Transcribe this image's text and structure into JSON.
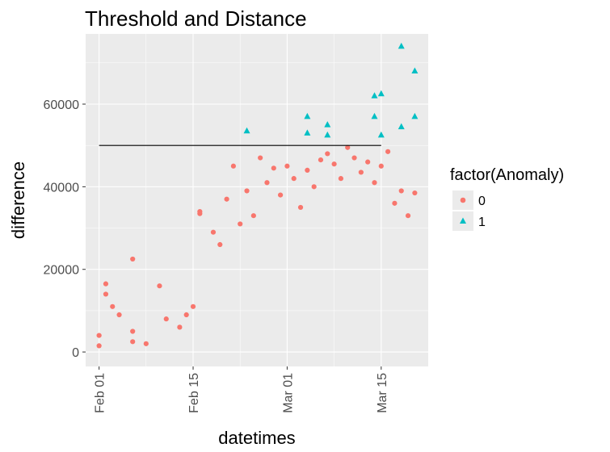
{
  "chart_data": {
    "type": "scatter",
    "title": "Threshold and Distance",
    "xlabel": "datetimes",
    "ylabel": "difference",
    "x_ticks": [
      {
        "label": "Feb 01",
        "date": "2017-02-01"
      },
      {
        "label": "Feb 15",
        "date": "2017-02-15"
      },
      {
        "label": "Mar 01",
        "date": "2017-03-01"
      },
      {
        "label": "Mar 15",
        "date": "2017-03-15"
      }
    ],
    "xlim": [
      "2017-01-30",
      "2017-03-22"
    ],
    "y_ticks": [
      0,
      20000,
      40000,
      60000
    ],
    "y_tick_labels": [
      "0",
      "20000",
      "40000",
      "60000"
    ],
    "ylim": [
      -3500,
      77000
    ],
    "threshold": {
      "y": 50000,
      "x_start": "2017-02-01",
      "x_end": "2017-03-15"
    },
    "legend": {
      "title": "factor(Anomaly)",
      "position": "right",
      "entries": [
        {
          "label": "0",
          "shape": "circle",
          "color": "#F8766D"
        },
        {
          "label": "1",
          "shape": "triangle",
          "color": "#00BFC4"
        }
      ]
    },
    "grid": true,
    "colors": {
      "panel": "#EBEBEB",
      "grid": "#FFFFFF",
      "normal": "#F8766D",
      "anomaly": "#00BFC4",
      "threshold_line": "#000000"
    },
    "series": [
      {
        "name": "0",
        "points": [
          [
            "2017-02-01",
            4000
          ],
          [
            "2017-02-01",
            1500
          ],
          [
            "2017-02-02",
            16500
          ],
          [
            "2017-02-02",
            14000
          ],
          [
            "2017-02-03",
            11000
          ],
          [
            "2017-02-04",
            9000
          ],
          [
            "2017-02-06",
            5000
          ],
          [
            "2017-02-06",
            2500
          ],
          [
            "2017-02-06",
            22500
          ],
          [
            "2017-02-08",
            2000
          ],
          [
            "2017-02-10",
            16000
          ],
          [
            "2017-02-11",
            8000
          ],
          [
            "2017-02-13",
            6000
          ],
          [
            "2017-02-14",
            9000
          ],
          [
            "2017-02-15",
            11000
          ],
          [
            "2017-02-16",
            34000
          ],
          [
            "2017-02-16",
            33500
          ],
          [
            "2017-02-18",
            29000
          ],
          [
            "2017-02-19",
            26000
          ],
          [
            "2017-02-20",
            37000
          ],
          [
            "2017-02-21",
            45000
          ],
          [
            "2017-02-22",
            31000
          ],
          [
            "2017-02-23",
            39000
          ],
          [
            "2017-02-24",
            33000
          ],
          [
            "2017-02-25",
            47000
          ],
          [
            "2017-02-26",
            41000
          ],
          [
            "2017-02-27",
            44500
          ],
          [
            "2017-02-28",
            38000
          ],
          [
            "2017-03-01",
            45000
          ],
          [
            "2017-03-02",
            42000
          ],
          [
            "2017-03-03",
            35000
          ],
          [
            "2017-03-04",
            44000
          ],
          [
            "2017-03-05",
            40000
          ],
          [
            "2017-03-06",
            46500
          ],
          [
            "2017-03-07",
            48000
          ],
          [
            "2017-03-08",
            45500
          ],
          [
            "2017-03-09",
            42000
          ],
          [
            "2017-03-10",
            49500
          ],
          [
            "2017-03-11",
            47000
          ],
          [
            "2017-03-12",
            43500
          ],
          [
            "2017-03-13",
            46000
          ],
          [
            "2017-03-14",
            41000
          ],
          [
            "2017-03-15",
            45000
          ],
          [
            "2017-03-16",
            48500
          ],
          [
            "2017-03-17",
            36000
          ],
          [
            "2017-03-18",
            39000
          ],
          [
            "2017-03-19",
            33000
          ],
          [
            "2017-03-20",
            38500
          ]
        ]
      },
      {
        "name": "1",
        "points": [
          [
            "2017-02-23",
            53500
          ],
          [
            "2017-03-04",
            57000
          ],
          [
            "2017-03-04",
            53000
          ],
          [
            "2017-03-07",
            55000
          ],
          [
            "2017-03-07",
            52500
          ],
          [
            "2017-03-14",
            62000
          ],
          [
            "2017-03-15",
            62500
          ],
          [
            "2017-03-14",
            57000
          ],
          [
            "2017-03-15",
            52500
          ],
          [
            "2017-03-18",
            74000
          ],
          [
            "2017-03-18",
            54500
          ],
          [
            "2017-03-20",
            68000
          ],
          [
            "2017-03-20",
            57000
          ]
        ]
      }
    ]
  }
}
